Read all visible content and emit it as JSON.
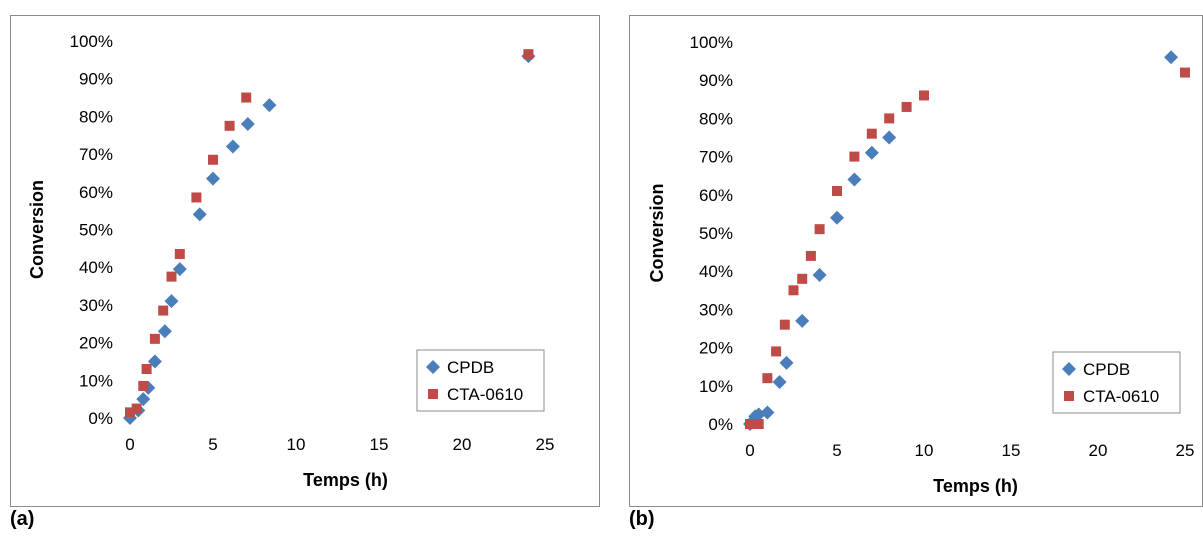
{
  "chart_data": [
    {
      "type": "scatter",
      "panel_label": "(a)",
      "xlabel": "Temps (h)",
      "ylabel": "Conversion",
      "xlim": [
        0,
        25
      ],
      "ylim": [
        0,
        1
      ],
      "x_ticks": [
        "0",
        "5",
        "10",
        "15",
        "20",
        "25"
      ],
      "y_ticks": [
        "0%",
        "10%",
        "20%",
        "30%",
        "40%",
        "50%",
        "60%",
        "70%",
        "80%",
        "90%",
        "100%"
      ],
      "grid": false,
      "legend_position": "bottom-right",
      "series": [
        {
          "name": "CPDB",
          "marker": "diamond",
          "color": "#4a7ebb",
          "points": [
            [
              0,
              0.0
            ],
            [
              0.5,
              0.02
            ],
            [
              0.8,
              0.05
            ],
            [
              1.1,
              0.08
            ],
            [
              1.5,
              0.15
            ],
            [
              2.1,
              0.23
            ],
            [
              2.5,
              0.31
            ],
            [
              3.0,
              0.395
            ],
            [
              4.2,
              0.54
            ],
            [
              5.0,
              0.635
            ],
            [
              6.2,
              0.72
            ],
            [
              7.1,
              0.78
            ],
            [
              8.4,
              0.83
            ],
            [
              24.0,
              0.96
            ]
          ]
        },
        {
          "name": "CTA-0610",
          "marker": "square",
          "color": "#be4b48",
          "points": [
            [
              0,
              0.015
            ],
            [
              0.4,
              0.025
            ],
            [
              0.8,
              0.085
            ],
            [
              1.0,
              0.13
            ],
            [
              1.5,
              0.21
            ],
            [
              2.0,
              0.285
            ],
            [
              2.5,
              0.375
            ],
            [
              3.0,
              0.435
            ],
            [
              4.0,
              0.585
            ],
            [
              5.0,
              0.685
            ],
            [
              6.0,
              0.775
            ],
            [
              7.0,
              0.85
            ],
            [
              24.0,
              0.965
            ]
          ]
        }
      ]
    },
    {
      "type": "scatter",
      "panel_label": "(b)",
      "xlabel": "Temps (h)",
      "ylabel": "Conversion",
      "xlim": [
        0,
        25
      ],
      "ylim": [
        0,
        1
      ],
      "x_ticks": [
        "0",
        "5",
        "10",
        "15",
        "20",
        "25"
      ],
      "y_ticks": [
        "0%",
        "10%",
        "20%",
        "30%",
        "40%",
        "50%",
        "60%",
        "70%",
        "80%",
        "90%",
        "100%"
      ],
      "grid": false,
      "legend_position": "bottom-right",
      "series": [
        {
          "name": "CPDB",
          "marker": "diamond",
          "color": "#4a7ebb",
          "points": [
            [
              0,
              0.0
            ],
            [
              0.3,
              0.02
            ],
            [
              0.5,
              0.025
            ],
            [
              1.0,
              0.03
            ],
            [
              1.7,
              0.11
            ],
            [
              2.1,
              0.16
            ],
            [
              3.0,
              0.27
            ],
            [
              4.0,
              0.39
            ],
            [
              5.0,
              0.54
            ],
            [
              6.0,
              0.64
            ],
            [
              7.0,
              0.71
            ],
            [
              8.0,
              0.75
            ],
            [
              24.2,
              0.96
            ]
          ]
        },
        {
          "name": "CTA-0610",
          "marker": "square",
          "color": "#be4b48",
          "points": [
            [
              0,
              0.0
            ],
            [
              0.2,
              0.0
            ],
            [
              0.5,
              0.0
            ],
            [
              1.0,
              0.12
            ],
            [
              1.5,
              0.19
            ],
            [
              2.0,
              0.26
            ],
            [
              2.5,
              0.35
            ],
            [
              3.0,
              0.38
            ],
            [
              3.5,
              0.44
            ],
            [
              4.0,
              0.51
            ],
            [
              5.0,
              0.61
            ],
            [
              6.0,
              0.7
            ],
            [
              7.0,
              0.76
            ],
            [
              8.0,
              0.8
            ],
            [
              9.0,
              0.83
            ],
            [
              10.0,
              0.86
            ],
            [
              25.0,
              0.92
            ]
          ]
        }
      ]
    }
  ]
}
